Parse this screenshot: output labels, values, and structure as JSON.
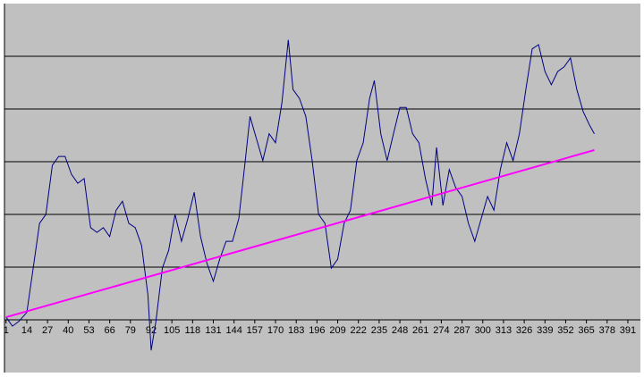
{
  "chart_data": {
    "type": "line",
    "xlim": [
      0,
      400
    ],
    "xticks": [
      1,
      14,
      27,
      40,
      53,
      66,
      79,
      92,
      105,
      118,
      131,
      144,
      157,
      170,
      183,
      196,
      209,
      222,
      235,
      248,
      261,
      274,
      287,
      300,
      313,
      326,
      339,
      352,
      365,
      378,
      391
    ],
    "ylim": [
      -1,
      6
    ],
    "yticks": [
      1,
      2,
      3,
      4,
      5
    ],
    "grid": true,
    "series": [
      {
        "color": "#000080",
        "x": [
          1,
          5,
          9,
          14,
          18,
          22,
          26,
          30,
          34,
          38,
          42,
          46,
          50,
          54,
          58,
          62,
          66,
          70,
          74,
          78,
          82,
          86,
          90,
          92,
          95,
          99,
          103,
          107,
          111,
          115,
          119,
          123,
          127,
          131,
          135,
          139,
          143,
          147,
          151,
          154,
          158,
          162,
          166,
          170,
          174,
          178,
          181,
          185,
          189,
          193,
          197,
          201,
          205,
          209,
          213,
          217,
          221,
          225,
          229,
          232,
          236,
          240,
          244,
          248,
          252,
          256,
          260,
          264,
          268,
          271,
          275,
          279,
          283,
          287,
          291,
          295,
          299,
          303,
          307,
          311,
          315,
          319,
          323,
          327,
          331,
          335,
          339,
          343,
          347,
          351,
          355,
          359,
          363,
          367,
          370
        ],
        "values": [
          0.05,
          -0.12,
          -0.03,
          0.14,
          0.98,
          1.83,
          2.0,
          2.93,
          3.1,
          3.1,
          2.76,
          2.59,
          2.68,
          1.75,
          1.66,
          1.75,
          1.58,
          2.08,
          2.25,
          1.83,
          1.75,
          1.41,
          0.47,
          -0.58,
          -0.03,
          0.98,
          1.32,
          2.0,
          1.49,
          1.92,
          2.42,
          1.58,
          1.07,
          0.73,
          1.15,
          1.49,
          1.49,
          1.92,
          3.02,
          3.86,
          3.44,
          3.02,
          3.53,
          3.36,
          4.12,
          5.31,
          4.37,
          4.2,
          3.86,
          3.02,
          2.0,
          1.83,
          0.98,
          1.15,
          1.83,
          2.08,
          3.02,
          3.36,
          4.2,
          4.54,
          3.53,
          3.02,
          3.53,
          4.03,
          4.03,
          3.53,
          3.36,
          2.68,
          2.17,
          3.27,
          2.17,
          2.85,
          2.51,
          2.34,
          1.83,
          1.49,
          1.92,
          2.34,
          2.08,
          2.85,
          3.36,
          3.02,
          3.53,
          4.37,
          5.14,
          5.22,
          4.71,
          4.46,
          4.71,
          4.8,
          4.97,
          4.37,
          3.95,
          3.69,
          3.53
        ]
      },
      {
        "color": "#ff00ff",
        "x": [
          1,
          370
        ],
        "values": [
          0.05,
          3.22
        ]
      }
    ]
  }
}
